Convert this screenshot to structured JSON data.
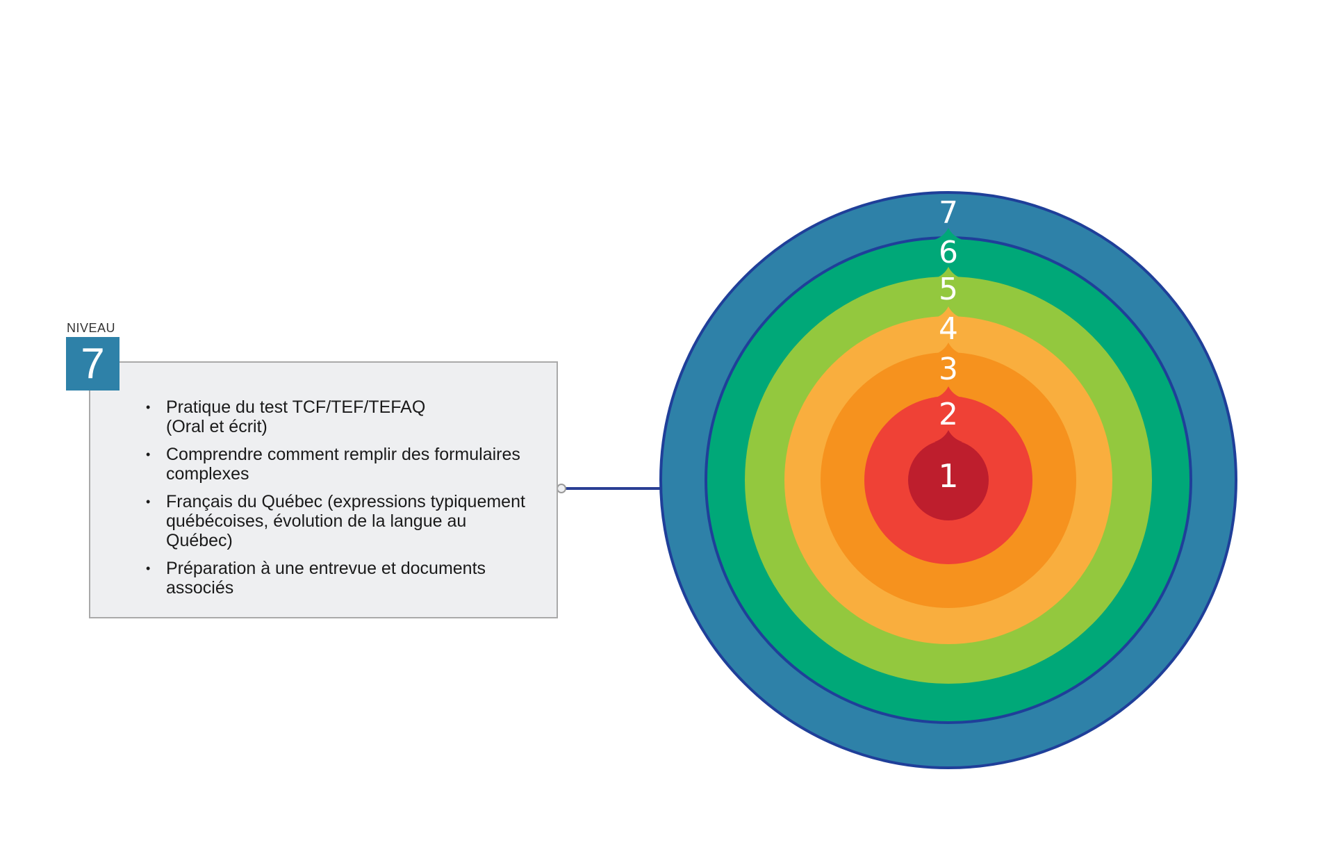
{
  "level_label": "NIVEAU",
  "level_number": "7",
  "items": [
    "Pratique du test  TCF/TEF/TEFAQ\n(Oral et écrit)",
    "Comprendre comment remplir des formulaires complexes",
    "Français du Québec (expressions typiquement québécoises, évolution de la langue au Québec)",
    "Préparation à une entrevue et documents associés"
  ],
  "rings": [
    {
      "label": "7",
      "color": "#2e81a8"
    },
    {
      "label": "6",
      "color": "#00a878"
    },
    {
      "label": "5",
      "color": "#93c83e"
    },
    {
      "label": "4",
      "color": "#f9ae3e"
    },
    {
      "label": "3",
      "color": "#f6921e"
    },
    {
      "label": "2",
      "color": "#ef4136"
    },
    {
      "label": "1",
      "color": "#be1e2d"
    }
  ],
  "colors": {
    "ring_border": "#1f3f99",
    "connector": "#2a3f94",
    "box_fill": "#eeeff1",
    "box_border": "#a9a9a9"
  }
}
